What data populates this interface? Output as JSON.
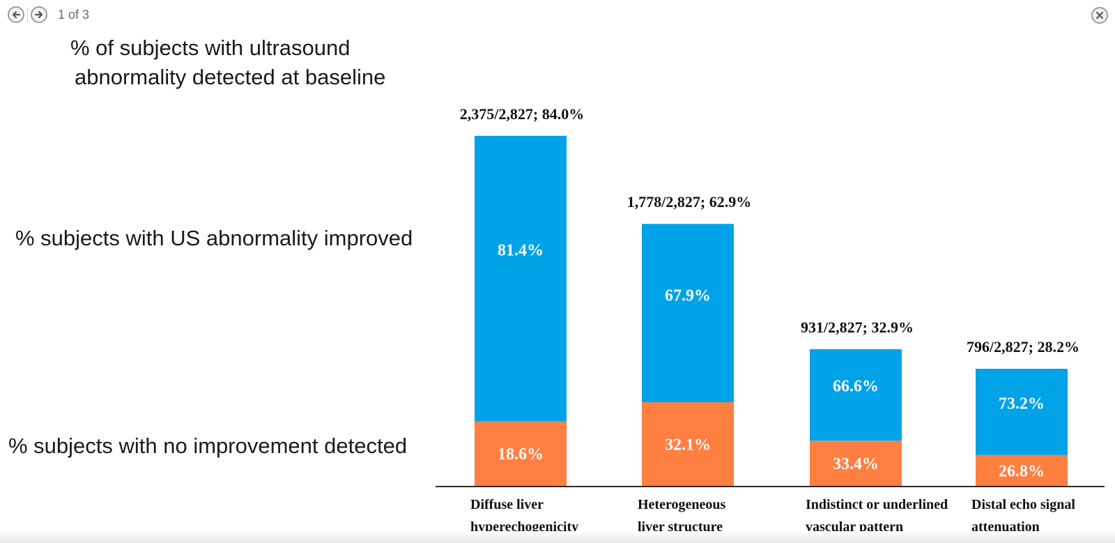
{
  "viewer": {
    "page_counter": "1 of 3",
    "prev_icon": "arrow-left-icon",
    "next_icon": "arrow-right-icon",
    "close_icon": "close-icon"
  },
  "chart_data": {
    "type": "bar",
    "stacked": true,
    "categories": [
      [
        "Diffuse liver",
        "hyperechogenicity"
      ],
      [
        "Heterogeneous",
        "liver structure"
      ],
      [
        "Indistinct or underlined",
        "vascular pattern"
      ],
      [
        "Distal echo signal",
        "attenuation"
      ]
    ],
    "bar_totals_pct": [
      84.0,
      62.9,
      32.9,
      28.2
    ],
    "total_labels": [
      "2,375/2,827; 84.0%",
      "1,778/2,827; 62.9%",
      "931/2,827; 32.9%",
      "796/2,827; 28.2%"
    ],
    "series": [
      {
        "name": "% subjects with no improvement detected",
        "color": "#FF7F41",
        "values": [
          18.6,
          32.1,
          33.4,
          26.8
        ],
        "labels": [
          "18.6%",
          "32.1%",
          "33.4%",
          "26.8%"
        ]
      },
      {
        "name": "% subjects with US abnormality improved",
        "color": "#00A2E8",
        "values": [
          81.4,
          67.9,
          66.6,
          73.2
        ],
        "labels": [
          "81.4%",
          "67.9%",
          "66.6%",
          "73.2%"
        ]
      }
    ],
    "total_legend": [
      "% of subjects with ultrasound",
      "abnormality detected at baseline"
    ],
    "ylim": [
      0,
      100
    ],
    "grid": false,
    "legend_position": "left"
  }
}
